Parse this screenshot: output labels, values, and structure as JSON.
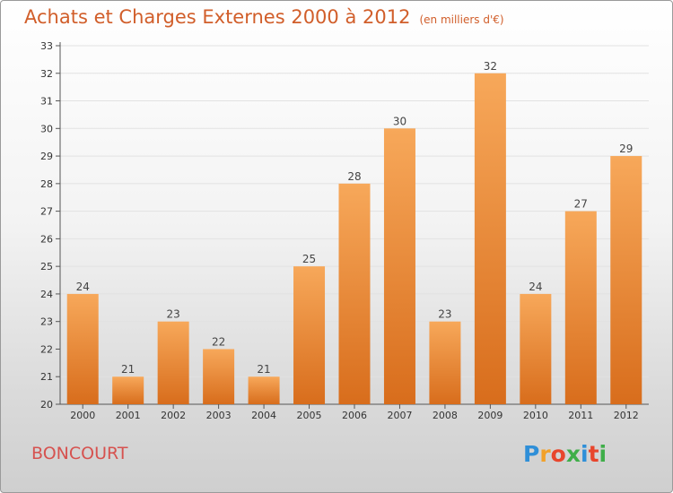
{
  "header": {
    "title": "Achats et Charges Externes 2000 à 2012",
    "unit": "(en milliers d'€)"
  },
  "footer": {
    "commune": "BONCOURT",
    "logo_text": "Proxiti"
  },
  "colors": {
    "bar_top": "#f7a85a",
    "bar_bottom": "#d86d1c",
    "title": "#d15e2a",
    "commune": "#d6524f"
  },
  "chart_data": {
    "type": "bar",
    "title": "Achats et Charges Externes 2000 à 2012",
    "subtitle": "(en milliers d'€)",
    "categories": [
      "2000",
      "2001",
      "2002",
      "2003",
      "2004",
      "2005",
      "2006",
      "2007",
      "2008",
      "2009",
      "2010",
      "2011",
      "2012"
    ],
    "values": [
      24,
      21,
      23,
      22,
      21,
      25,
      28,
      30,
      23,
      32,
      24,
      27,
      29
    ],
    "data_labels": [
      "24",
      "21",
      "23",
      "22",
      "21",
      "25",
      "28",
      "30",
      "23",
      "32",
      "24",
      "27",
      "29"
    ],
    "yticks": [
      20,
      21,
      22,
      23,
      24,
      25,
      26,
      27,
      28,
      29,
      30,
      31,
      32,
      33
    ],
    "ylim": [
      20,
      33
    ],
    "grid": true,
    "legend": "none"
  }
}
